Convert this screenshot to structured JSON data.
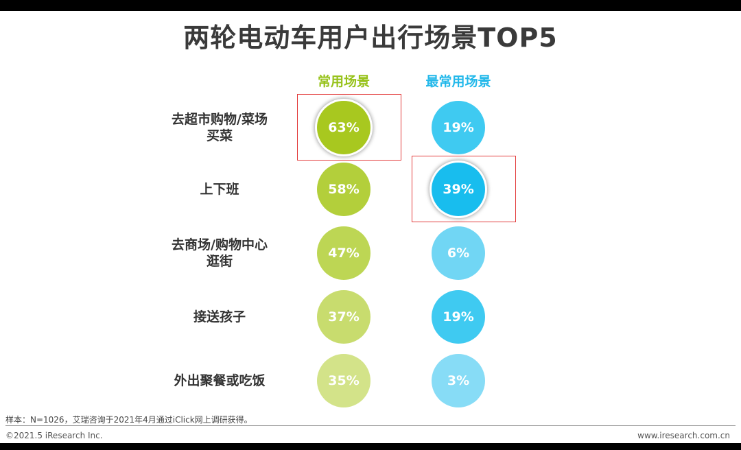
{
  "title": "两轮电动车用户出行场景TOP5",
  "chart_data": {
    "type": "table",
    "series": [
      {
        "name": "常用场景",
        "color": "#a8c81f"
      },
      {
        "name": "最常用场景",
        "color": "#23c0ee"
      }
    ],
    "categories": [
      "去超市购物/菜场\n买菜",
      "上下班",
      "去商场/购物中心\n逛街",
      "接送孩子",
      "外出聚餐或吃饭"
    ],
    "rows": [
      {
        "label": "去超市购物/菜场\n买菜",
        "values": [
          "63%",
          "19%"
        ],
        "highlight": [
          true,
          false
        ]
      },
      {
        "label": "上下班",
        "values": [
          "58%",
          "39%"
        ],
        "highlight": [
          false,
          true
        ]
      },
      {
        "label": "去商场/购物中心\n逛街",
        "values": [
          "47%",
          "6%"
        ],
        "highlight": [
          false,
          false
        ]
      },
      {
        "label": "接送孩子",
        "values": [
          "37%",
          "19%"
        ],
        "highlight": [
          false,
          false
        ]
      },
      {
        "label": "外出聚餐或吃饭",
        "values": [
          "35%",
          "3%"
        ],
        "highlight": [
          false,
          false
        ]
      }
    ]
  },
  "footer": {
    "note": "样本：N=1026，艾瑞咨询于2021年4月通过iClick网上调研获得。",
    "copyright": "©2021.5 iResearch Inc.",
    "website": "www.iresearch.com.cn"
  },
  "colors": {
    "col1": [
      "#a8c81f",
      "#b3cf3b",
      "#bdd654",
      "#c8dc6e",
      "#d3e389"
    ],
    "col2": [
      "#3fcaf1",
      "#18bdee",
      "#71d6f4",
      "#3fcaf1",
      "#87dcf6"
    ],
    "header1": "#97c21a",
    "header2": "#23b8ea",
    "highlight_box": "#e23a3a"
  }
}
